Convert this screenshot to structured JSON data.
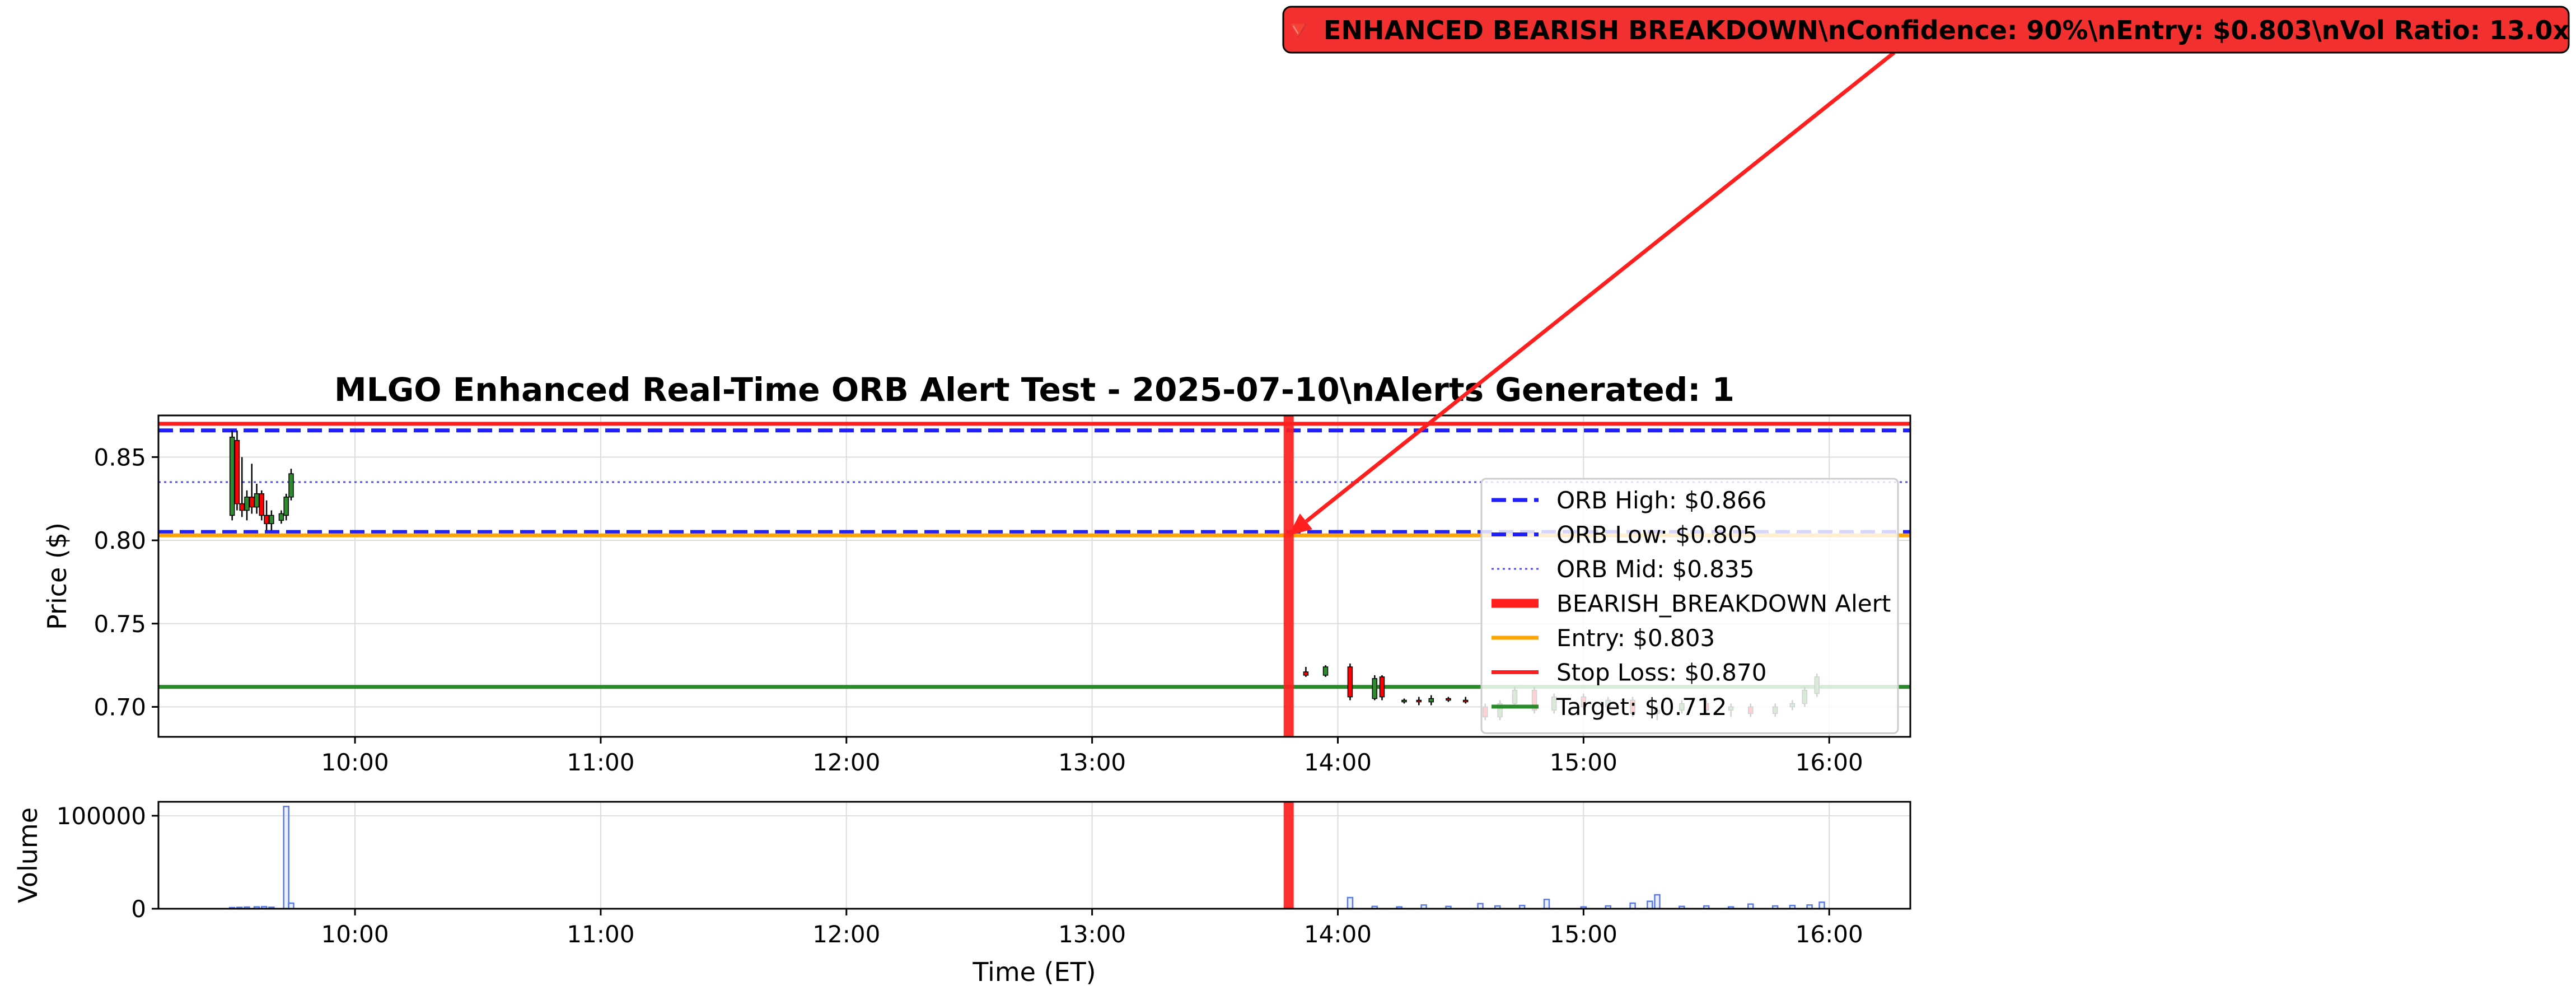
{
  "colors": {
    "orb_high": "#1f1fff",
    "orb_low": "#1f1fff",
    "orb_mid": "#4b4bff",
    "alert": "#ff1f1f",
    "entry": "#ffa500",
    "stop": "#ff1f1f",
    "target": "#2a8b2a",
    "up": "#2e8b2e",
    "down": "#ff0000",
    "volume": "#5a7be8",
    "grid": "#dddddd",
    "callout_fill": "#f23030"
  },
  "chart_data": [
    {
      "type": "candlestick",
      "title": "MLGO Enhanced Real-Time ORB Alert Test - 2025-07-10\\nAlerts Generated: 1",
      "ylabel": "Price ($)",
      "xlabel": "",
      "x_unit": "hours",
      "xlim": [
        9.2,
        16.33
      ],
      "ylim": [
        0.682,
        0.875
      ],
      "grid": true,
      "xticks": [
        10,
        11,
        12,
        13,
        14,
        15,
        16
      ],
      "xtick_labels": [
        "10:00",
        "11:00",
        "12:00",
        "13:00",
        "14:00",
        "15:00",
        "16:00"
      ],
      "yticks": [
        0.7,
        0.75,
        0.8,
        0.85
      ],
      "ytick_labels": [
        "0.70",
        "0.75",
        "0.80",
        "0.85"
      ],
      "legend_position": "center-right",
      "lines": [
        {
          "name": "ORB High: $0.866",
          "y": 0.866,
          "style": "dashed",
          "color_key": "orb_high"
        },
        {
          "name": "ORB Low: $0.805",
          "y": 0.805,
          "style": "dashed",
          "color_key": "orb_low"
        },
        {
          "name": "ORB Mid: $0.835",
          "y": 0.835,
          "style": "dotted",
          "color_key": "orb_mid"
        },
        {
          "name": "Entry: $0.803",
          "y": 0.803,
          "style": "solid",
          "color_key": "entry"
        },
        {
          "name": "Stop Loss: $0.870",
          "y": 0.87,
          "style": "solid",
          "color_key": "stop"
        },
        {
          "name": "Target: $0.712",
          "y": 0.712,
          "style": "solid",
          "color_key": "target"
        }
      ],
      "alert": {
        "name": "BEARISH_BREAKDOWN Alert",
        "x": 13.8
      },
      "annotation": {
        "text": "🔻 ENHANCED BEARISH BREAKDOWN\\nConfidence: 90%\\nEntry: $0.803\\nVol Ratio: 13.0x",
        "point_x": 13.8,
        "point_y": 0.803
      },
      "legend": [
        "ORB High: $0.866",
        "ORB Low: $0.805",
        "ORB Mid: $0.835",
        "BEARISH_BREAKDOWN Alert",
        "Entry: $0.803",
        "Stop Loss: $0.870",
        "Target: $0.712"
      ],
      "candles": [
        {
          "t": 9.5,
          "o": 0.815,
          "h": 0.866,
          "l": 0.812,
          "c": 0.862
        },
        {
          "t": 9.52,
          "o": 0.86,
          "h": 0.866,
          "l": 0.818,
          "c": 0.822
        },
        {
          "t": 9.54,
          "o": 0.822,
          "h": 0.85,
          "l": 0.814,
          "c": 0.818
        },
        {
          "t": 9.56,
          "o": 0.818,
          "h": 0.83,
          "l": 0.812,
          "c": 0.826
        },
        {
          "t": 9.58,
          "o": 0.826,
          "h": 0.846,
          "l": 0.816,
          "c": 0.82
        },
        {
          "t": 9.6,
          "o": 0.82,
          "h": 0.834,
          "l": 0.816,
          "c": 0.828
        },
        {
          "t": 9.62,
          "o": 0.828,
          "h": 0.83,
          "l": 0.812,
          "c": 0.815
        },
        {
          "t": 9.64,
          "o": 0.815,
          "h": 0.824,
          "l": 0.806,
          "c": 0.81
        },
        {
          "t": 9.66,
          "o": 0.81,
          "h": 0.818,
          "l": 0.806,
          "c": 0.815
        },
        {
          "t": 9.7,
          "o": 0.812,
          "h": 0.818,
          "l": 0.81,
          "c": 0.816
        },
        {
          "t": 9.72,
          "o": 0.815,
          "h": 0.828,
          "l": 0.812,
          "c": 0.826
        },
        {
          "t": 9.74,
          "o": 0.826,
          "h": 0.843,
          "l": 0.824,
          "c": 0.84
        },
        {
          "t": 13.87,
          "o": 0.721,
          "h": 0.724,
          "l": 0.718,
          "c": 0.719
        },
        {
          "t": 13.95,
          "o": 0.719,
          "h": 0.725,
          "l": 0.718,
          "c": 0.724
        },
        {
          "t": 14.05,
          "o": 0.724,
          "h": 0.726,
          "l": 0.704,
          "c": 0.706
        },
        {
          "t": 14.15,
          "o": 0.705,
          "h": 0.719,
          "l": 0.704,
          "c": 0.717
        },
        {
          "t": 14.18,
          "o": 0.718,
          "h": 0.719,
          "l": 0.704,
          "c": 0.706
        },
        {
          "t": 14.27,
          "o": 0.703,
          "h": 0.705,
          "l": 0.702,
          "c": 0.704
        },
        {
          "t": 14.33,
          "o": 0.704,
          "h": 0.706,
          "l": 0.701,
          "c": 0.703
        },
        {
          "t": 14.38,
          "o": 0.703,
          "h": 0.707,
          "l": 0.701,
          "c": 0.705
        },
        {
          "t": 14.45,
          "o": 0.705,
          "h": 0.706,
          "l": 0.703,
          "c": 0.704
        },
        {
          "t": 14.52,
          "o": 0.704,
          "h": 0.706,
          "l": 0.702,
          "c": 0.703
        },
        {
          "t": 14.6,
          "o": 0.7,
          "h": 0.702,
          "l": 0.692,
          "c": 0.694
        },
        {
          "t": 14.66,
          "o": 0.694,
          "h": 0.704,
          "l": 0.692,
          "c": 0.702
        },
        {
          "t": 14.72,
          "o": 0.702,
          "h": 0.712,
          "l": 0.7,
          "c": 0.71
        },
        {
          "t": 14.8,
          "o": 0.71,
          "h": 0.712,
          "l": 0.696,
          "c": 0.698
        },
        {
          "t": 14.88,
          "o": 0.698,
          "h": 0.708,
          "l": 0.696,
          "c": 0.706
        },
        {
          "t": 15.0,
          "o": 0.706,
          "h": 0.708,
          "l": 0.698,
          "c": 0.7
        },
        {
          "t": 15.1,
          "o": 0.7,
          "h": 0.706,
          "l": 0.698,
          "c": 0.704
        },
        {
          "t": 15.2,
          "o": 0.704,
          "h": 0.706,
          "l": 0.694,
          "c": 0.696
        },
        {
          "t": 15.3,
          "o": 0.696,
          "h": 0.7,
          "l": 0.692,
          "c": 0.698
        },
        {
          "t": 15.4,
          "o": 0.698,
          "h": 0.704,
          "l": 0.696,
          "c": 0.702
        },
        {
          "t": 15.5,
          "o": 0.702,
          "h": 0.704,
          "l": 0.696,
          "c": 0.698
        },
        {
          "t": 15.6,
          "o": 0.698,
          "h": 0.702,
          "l": 0.694,
          "c": 0.7
        },
        {
          "t": 15.68,
          "o": 0.7,
          "h": 0.702,
          "l": 0.694,
          "c": 0.696
        },
        {
          "t": 15.78,
          "o": 0.696,
          "h": 0.702,
          "l": 0.694,
          "c": 0.7
        },
        {
          "t": 15.85,
          "o": 0.7,
          "h": 0.704,
          "l": 0.698,
          "c": 0.702
        },
        {
          "t": 15.9,
          "o": 0.702,
          "h": 0.712,
          "l": 0.7,
          "c": 0.71
        },
        {
          "t": 15.95,
          "o": 0.708,
          "h": 0.72,
          "l": 0.706,
          "c": 0.718
        }
      ]
    },
    {
      "type": "bar",
      "title": "",
      "ylabel": "Volume",
      "xlabel": "Time (ET)",
      "x_unit": "hours",
      "xlim": [
        9.2,
        16.33
      ],
      "ylim": [
        0,
        115000
      ],
      "grid": true,
      "xticks": [
        10,
        11,
        12,
        13,
        14,
        15,
        16
      ],
      "xtick_labels": [
        "10:00",
        "11:00",
        "12:00",
        "13:00",
        "14:00",
        "15:00",
        "16:00"
      ],
      "yticks": [
        0,
        100000
      ],
      "ytick_labels": [
        "0",
        "100000"
      ],
      "alert_x": 13.8,
      "bars": [
        {
          "t": 9.5,
          "v": 1200
        },
        {
          "t": 9.53,
          "v": 1500
        },
        {
          "t": 9.56,
          "v": 1800
        },
        {
          "t": 9.6,
          "v": 2000
        },
        {
          "t": 9.63,
          "v": 2200
        },
        {
          "t": 9.66,
          "v": 1600
        },
        {
          "t": 9.72,
          "v": 110000
        },
        {
          "t": 9.74,
          "v": 6000
        },
        {
          "t": 14.05,
          "v": 12000
        },
        {
          "t": 14.15,
          "v": 2500
        },
        {
          "t": 14.25,
          "v": 2000
        },
        {
          "t": 14.35,
          "v": 4000
        },
        {
          "t": 14.45,
          "v": 2500
        },
        {
          "t": 14.58,
          "v": 5500
        },
        {
          "t": 14.65,
          "v": 3000
        },
        {
          "t": 14.75,
          "v": 3500
        },
        {
          "t": 14.85,
          "v": 10000
        },
        {
          "t": 15.0,
          "v": 2000
        },
        {
          "t": 15.1,
          "v": 3000
        },
        {
          "t": 15.2,
          "v": 6000
        },
        {
          "t": 15.27,
          "v": 8000
        },
        {
          "t": 15.3,
          "v": 15000
        },
        {
          "t": 15.4,
          "v": 2500
        },
        {
          "t": 15.5,
          "v": 3000
        },
        {
          "t": 15.6,
          "v": 2000
        },
        {
          "t": 15.68,
          "v": 5000
        },
        {
          "t": 15.78,
          "v": 3000
        },
        {
          "t": 15.85,
          "v": 3500
        },
        {
          "t": 15.92,
          "v": 4000
        },
        {
          "t": 15.97,
          "v": 7000
        }
      ]
    }
  ]
}
